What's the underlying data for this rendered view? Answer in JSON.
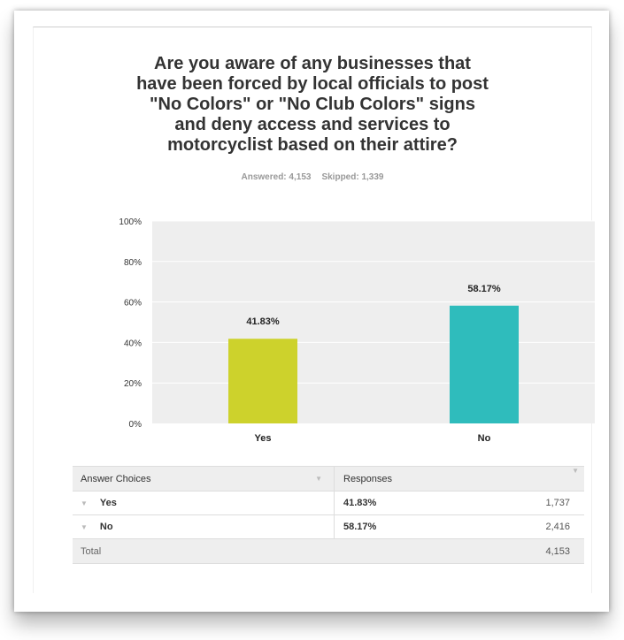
{
  "question": "Are you aware of any businesses that have been forced by local officials to post \"No Colors\" or \"No Club Colors\" signs and deny access and services to motorcyclist based on their attire?",
  "answered": "Answered: 4,153",
  "skipped": "Skipped: 1,339",
  "colors": {
    "yes": "#cdd22c",
    "no": "#2fbcbc",
    "plot_bg": "#eeeeee"
  },
  "chart_data": {
    "type": "bar",
    "categories": [
      "Yes",
      "No"
    ],
    "values": [
      41.83,
      58.17
    ],
    "data_labels": [
      "41.83%",
      "58.17%"
    ],
    "y_ticks": [
      "0%",
      "20%",
      "40%",
      "60%",
      "80%",
      "100%"
    ],
    "ylim": [
      0,
      100
    ],
    "grid": true
  },
  "table": {
    "headers": [
      "Answer Choices",
      "Responses"
    ],
    "rows": [
      {
        "choice": "Yes",
        "percent": "41.83%",
        "count": "1,737"
      },
      {
        "choice": "No",
        "percent": "58.17%",
        "count": "2,416"
      }
    ],
    "total_label": "Total",
    "total_count": "4,153"
  }
}
